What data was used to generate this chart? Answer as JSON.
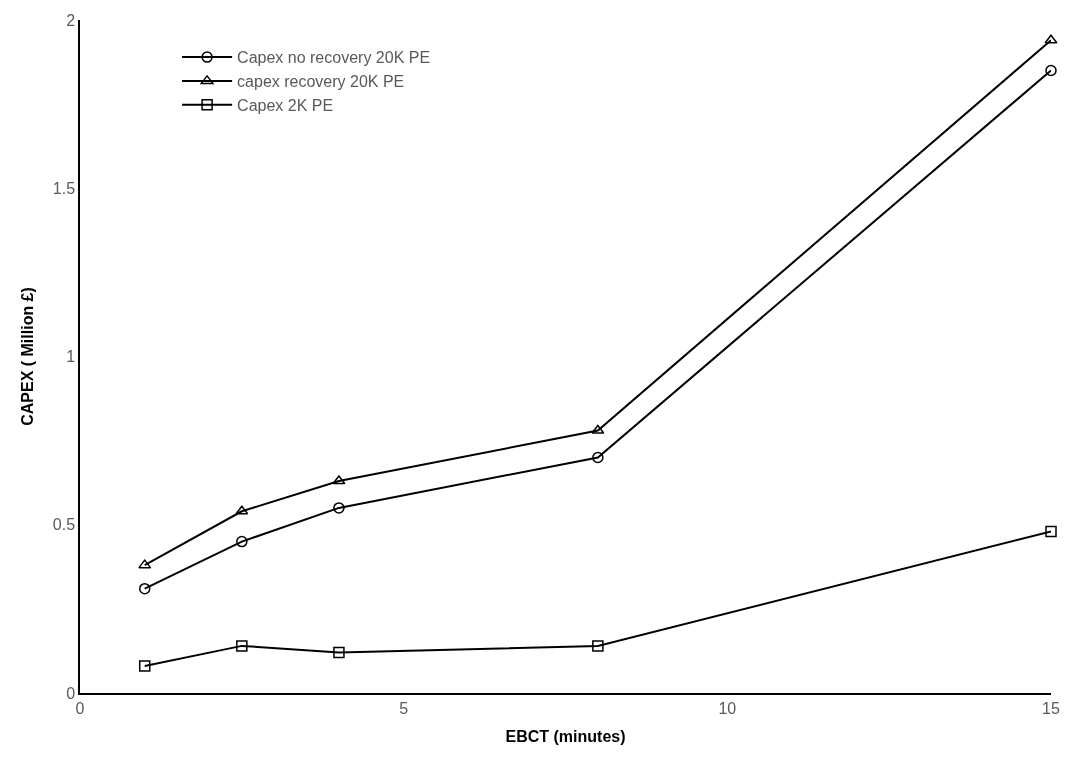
{
  "chart_data": {
    "type": "line",
    "xlabel": "EBCT (minutes)",
    "ylabel": "CAPEX ( Million £)",
    "x": [
      1,
      2.5,
      4,
      8,
      15
    ],
    "series": [
      {
        "name": "Capex no recovery 20K PE",
        "color": "#000000",
        "marker": "circle",
        "values": [
          0.31,
          0.45,
          0.55,
          0.7,
          1.85
        ]
      },
      {
        "name": "capex recovery 20K PE",
        "color": "#000000",
        "marker": "triangle",
        "values": [
          0.38,
          0.54,
          0.63,
          0.78,
          1.94
        ]
      },
      {
        "name": "Capex 2K PE",
        "color": "#000000",
        "marker": "square",
        "values": [
          0.08,
          0.14,
          0.12,
          0.14,
          0.48
        ]
      }
    ],
    "xlim": [
      0,
      15
    ],
    "xticks": [
      0,
      5,
      10,
      15
    ],
    "ylim": [
      0,
      2
    ],
    "yticks": [
      0,
      0.5,
      1,
      1.5,
      2
    ],
    "legend": "top left",
    "line_style": "solid"
  }
}
